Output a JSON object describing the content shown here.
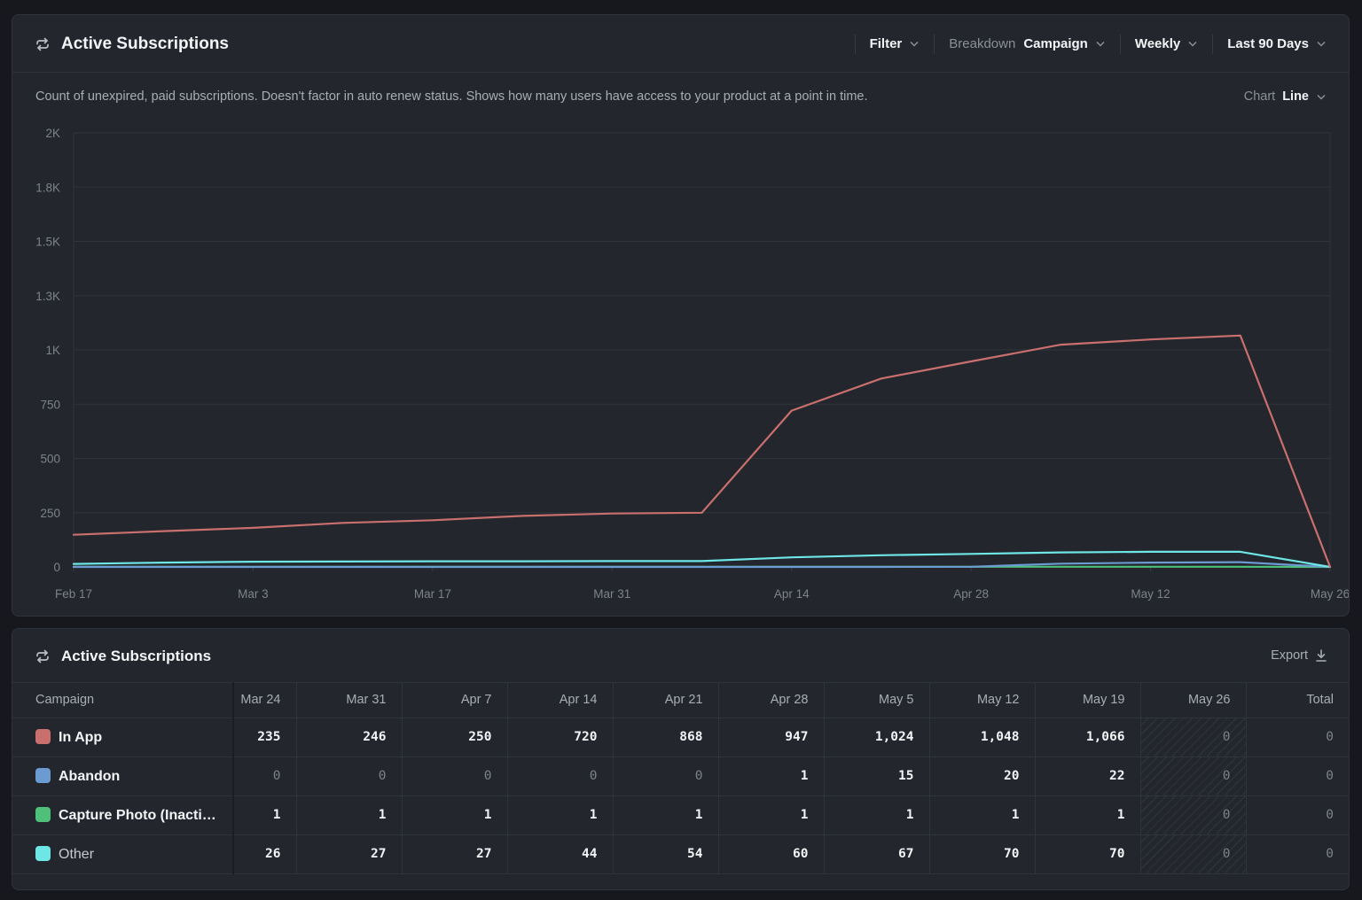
{
  "chart_panel": {
    "title": "Active Subscriptions",
    "filter_label": "Filter",
    "breakdown_label": "Breakdown",
    "breakdown_value": "Campaign",
    "interval_label": "Weekly",
    "range_label": "Last 90 Days",
    "description": "Count of unexpired, paid subscriptions. Doesn't factor in auto renew status. Shows how many users have access to your product at a point in time.",
    "chart_type_label": "Chart",
    "chart_type_value": "Line"
  },
  "chart_data": {
    "type": "line",
    "x": [
      "Feb 17",
      "Feb 24",
      "Mar 3",
      "Mar 10",
      "Mar 17",
      "Mar 24",
      "Mar 31",
      "Apr 7",
      "Apr 14",
      "Apr 21",
      "Apr 28",
      "May 5",
      "May 12",
      "May 19",
      "May 26"
    ],
    "x_tick_labels": [
      "Feb 17",
      "Mar 3",
      "Mar 17",
      "Mar 31",
      "Apr 14",
      "Apr 28",
      "May 12",
      "May 26"
    ],
    "y_tick_labels": [
      "0",
      "250",
      "500",
      "750",
      "1K",
      "1.3K",
      "1.5K",
      "1.8K",
      "2K"
    ],
    "ylim": [
      0,
      2000
    ],
    "grid": true,
    "series": [
      {
        "name": "In App",
        "color": "#c9706e",
        "values": [
          148,
          165,
          180,
          203,
          215,
          235,
          246,
          250,
          720,
          868,
          947,
          1024,
          1048,
          1066,
          0
        ]
      },
      {
        "name": "Abandon",
        "color": "#6b9bd1",
        "values": [
          0,
          0,
          0,
          0,
          0,
          0,
          0,
          0,
          0,
          0,
          1,
          15,
          20,
          22,
          0
        ]
      },
      {
        "name": "Capture Photo (Inactive)",
        "color": "#4fc07a",
        "values": [
          1,
          1,
          1,
          1,
          1,
          1,
          1,
          1,
          1,
          1,
          1,
          1,
          1,
          1,
          0
        ]
      },
      {
        "name": "Other",
        "color": "#6ee6e6",
        "values": [
          14,
          20,
          24,
          25,
          26,
          26,
          27,
          27,
          44,
          54,
          60,
          67,
          70,
          70,
          0
        ]
      }
    ]
  },
  "table_panel": {
    "title": "Active Subscriptions",
    "export_label": "Export",
    "columns": [
      "Campaign",
      "Mar 24",
      "Mar 31",
      "Apr 7",
      "Apr 14",
      "Apr 21",
      "Apr 28",
      "May 5",
      "May 12",
      "May 19",
      "May 26",
      "Total"
    ],
    "rows": [
      {
        "name": "In App",
        "color": "#c9706e",
        "cells": [
          "235",
          "246",
          "250",
          "720",
          "868",
          "947",
          "1,024",
          "1,048",
          "1,066",
          "0",
          "0"
        ]
      },
      {
        "name": "Abandon",
        "color": "#6b9bd1",
        "cells": [
          "0",
          "0",
          "0",
          "0",
          "0",
          "1",
          "15",
          "20",
          "22",
          "0",
          "0"
        ]
      },
      {
        "name": "Capture Photo (Inacti…",
        "color": "#4fc07a",
        "cells": [
          "1",
          "1",
          "1",
          "1",
          "1",
          "1",
          "1",
          "1",
          "1",
          "0",
          "0"
        ]
      },
      {
        "name": "Other",
        "color": "#6ee6e6",
        "cells": [
          "26",
          "27",
          "27",
          "44",
          "54",
          "60",
          "67",
          "70",
          "70",
          "0",
          "0"
        ]
      }
    ]
  }
}
